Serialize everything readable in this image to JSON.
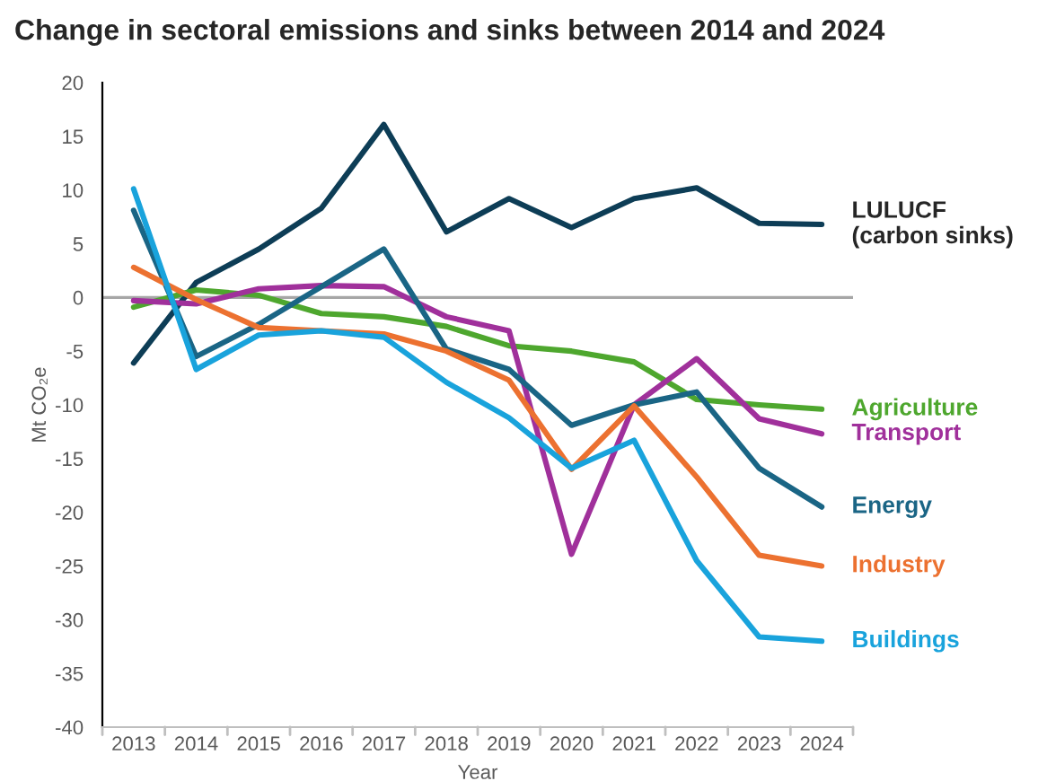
{
  "chart_data": {
    "type": "line",
    "title": "Change in sectoral emissions and sinks between 2014 and 2024",
    "xlabel": "Year",
    "ylabel": "Mt CO₂e",
    "categories": [
      "2013",
      "2014",
      "2015",
      "2016",
      "2017",
      "2018",
      "2019",
      "2020",
      "2021",
      "2022",
      "2023",
      "2024"
    ],
    "series": [
      {
        "name": "LULUCF\n(carbon sinks)",
        "color": "#0d3d56",
        "values": [
          -6.1,
          1.4,
          4.5,
          8.3,
          16.1,
          6.1,
          9.2,
          6.5,
          9.2,
          10.2,
          6.9,
          6.8
        ]
      },
      {
        "name": "Agriculture",
        "color": "#4ea72e",
        "values": [
          -0.9,
          0.7,
          0.2,
          -1.5,
          -1.8,
          -2.7,
          -4.5,
          -5.0,
          -6.0,
          -9.5,
          -10.0,
          -10.4
        ]
      },
      {
        "name": "Transport",
        "color": "#a0309b",
        "values": [
          -0.3,
          -0.6,
          0.8,
          1.1,
          1.0,
          -1.8,
          -3.1,
          -23.9,
          -10.0,
          -5.7,
          -11.3,
          -12.7
        ]
      },
      {
        "name": "Energy",
        "color": "#1a6585",
        "values": [
          8.1,
          -5.5,
          -2.5,
          1.0,
          4.5,
          -4.8,
          -6.7,
          -11.9,
          -10.0,
          -8.8,
          -15.9,
          -19.5
        ]
      },
      {
        "name": "Industry",
        "color": "#ec7130",
        "values": [
          2.8,
          -0.2,
          -2.8,
          -3.1,
          -3.4,
          -5.0,
          -7.7,
          -16.0,
          -10.1,
          -16.7,
          -24.0,
          -25.0
        ]
      },
      {
        "name": "Buildings",
        "color": "#19a3dc",
        "values": [
          10.1,
          -6.7,
          -3.5,
          -3.1,
          -3.7,
          -7.9,
          -11.2,
          -15.9,
          -13.3,
          -24.5,
          -31.6,
          -32.0
        ]
      }
    ],
    "ylim": [
      -40,
      20
    ],
    "yticks": [
      -40,
      -35,
      -30,
      -25,
      -20,
      -15,
      -10,
      -5,
      0,
      5,
      10,
      15,
      20
    ],
    "ref_lines": [
      {
        "axis": "y",
        "value": 0,
        "color": "#a6a6a6"
      }
    ],
    "grid": false,
    "legend": false,
    "marker": "none",
    "line_style": "solid"
  }
}
